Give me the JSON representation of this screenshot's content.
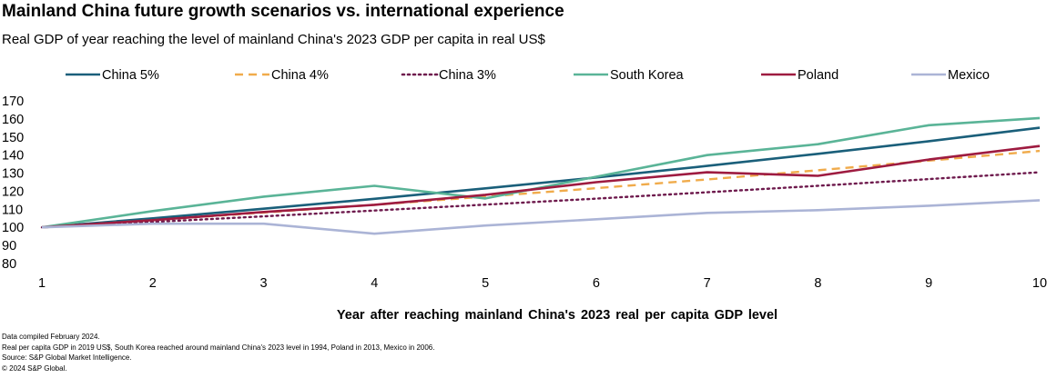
{
  "header": {
    "title": "Mainland China future growth scenarios vs. international experience",
    "subtitle": "Real GDP of year reaching the level of mainland China's 2023 GDP per capita in real US$"
  },
  "chart_data": {
    "type": "line",
    "title": "Mainland China future growth scenarios vs. international experience",
    "subtitle": "Real GDP of year reaching the level of mainland China's 2023 GDP per capita in real US$",
    "xlabel": "Year after reaching mainland China's 2023 real per capita GDP level",
    "ylabel": "",
    "x": [
      1,
      2,
      3,
      4,
      5,
      6,
      7,
      8,
      9,
      10
    ],
    "xlim": [
      1,
      10
    ],
    "ylim": [
      80,
      170
    ],
    "yticks": [
      80,
      90,
      100,
      110,
      120,
      130,
      140,
      150,
      160,
      170
    ],
    "grid": false,
    "legend_position": "top",
    "series": [
      {
        "name": "China 5%",
        "color": "#1a5f7a",
        "style": "solid",
        "values": [
          100,
          105,
          110.3,
          115.8,
          121.6,
          127.6,
          134,
          140.7,
          147.7,
          155.1
        ]
      },
      {
        "name": "China 4%",
        "color": "#f0ab4b",
        "style": "dashed",
        "values": [
          100,
          104,
          108.2,
          112.5,
          117,
          121.7,
          126.5,
          131.6,
          136.9,
          142.3
        ]
      },
      {
        "name": "China 3%",
        "color": "#6e1a4d",
        "style": "dotted",
        "values": [
          100,
          103,
          106.1,
          109.3,
          112.6,
          115.9,
          119.4,
          123,
          126.7,
          130.5
        ]
      },
      {
        "name": "South Korea",
        "color": "#5ab497",
        "style": "solid",
        "values": [
          100,
          109,
          117,
          123,
          116,
          128,
          140,
          146,
          156.5,
          160.5
        ]
      },
      {
        "name": "Poland",
        "color": "#9e1b40",
        "style": "solid",
        "values": [
          100,
          104,
          108.5,
          112.5,
          118,
          125,
          130.5,
          128.5,
          137.5,
          145
        ]
      },
      {
        "name": "Mexico",
        "color": "#abb4d6",
        "style": "solid",
        "values": [
          100,
          102,
          102,
          96.5,
          101,
          104.5,
          108,
          109.5,
          112,
          115
        ]
      }
    ]
  },
  "notes": [
    "Data compiled February 2024.",
    "Real per capita GDP in 2019 US$, South Korea reached around mainland China's 2023 level in 1994, Poland in 2013, Mexico in 2006.",
    "Source: S&P Global Market Intelligence.",
    "© 2024 S&P Global."
  ]
}
